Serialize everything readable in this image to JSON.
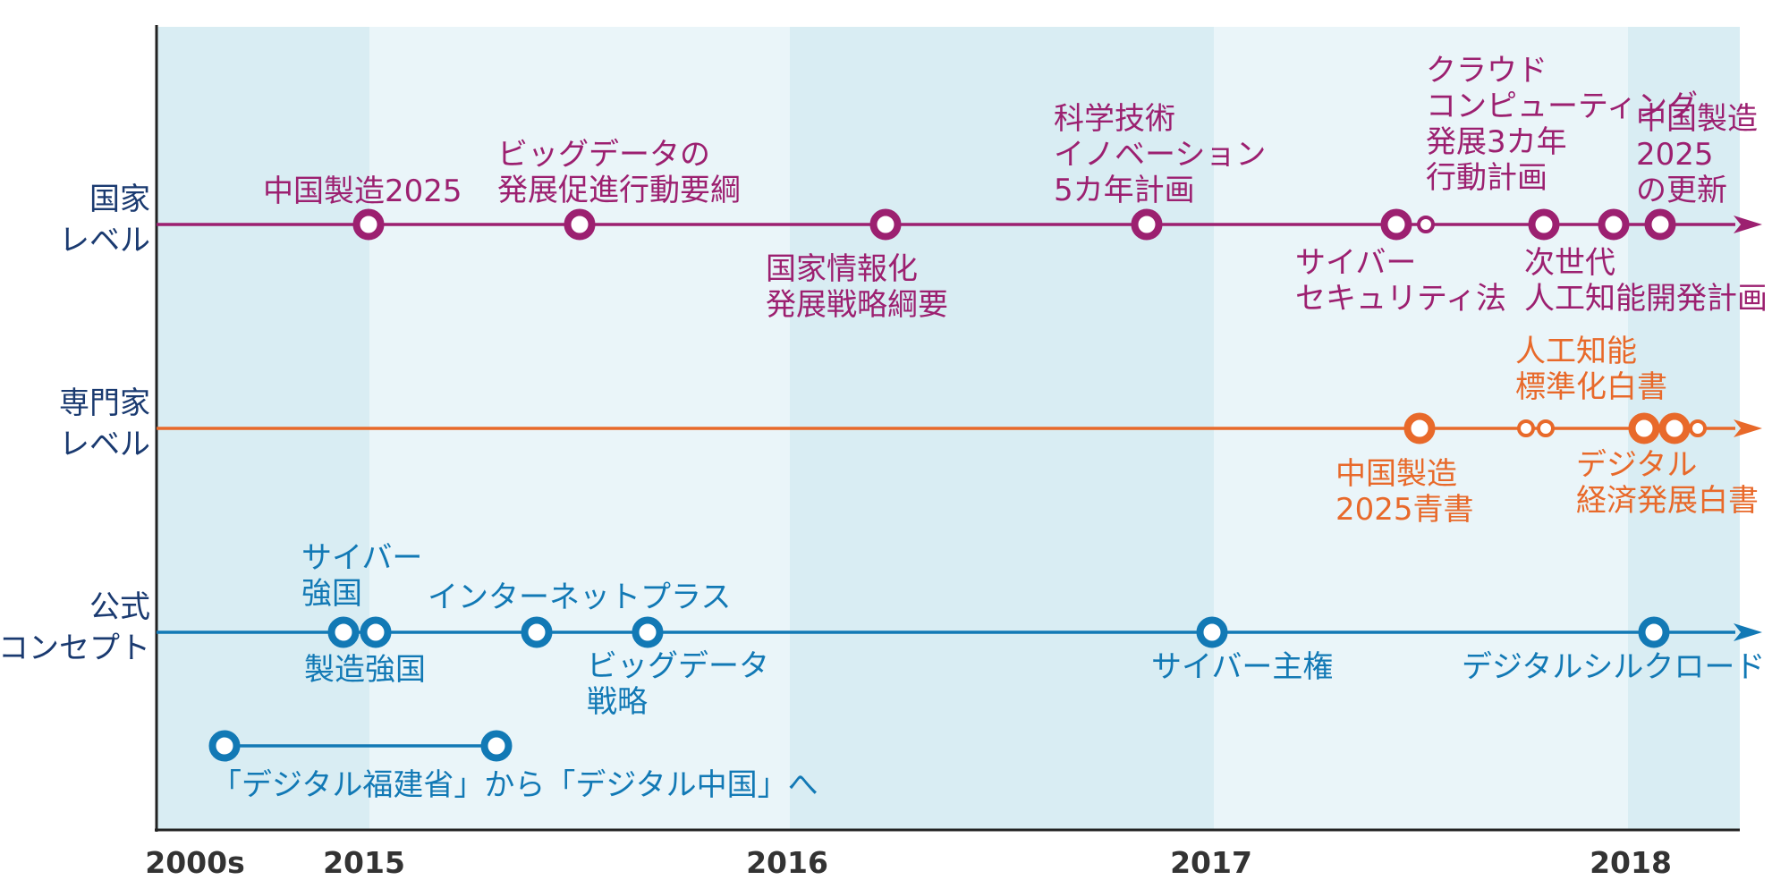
{
  "colors": {
    "national": "#9c2070",
    "expert": "#e8692a",
    "official": "#1279b5",
    "band_dark": "#d9edf3",
    "band_light": "#eaf5f9",
    "axis": "#222222",
    "year_text": "#333333"
  },
  "row_labels": {
    "national": [
      "国家",
      "レベル"
    ],
    "expert": [
      "専門家",
      "レベル"
    ],
    "official": [
      "公式",
      "コンセプト"
    ]
  },
  "years": [
    "2000s",
    "2015",
    "2016",
    "2017",
    "2018"
  ],
  "national_events": [
    {
      "lines": [
        "中国製造2025"
      ]
    },
    {
      "lines": [
        "ビッグデータの",
        "発展促進行動要綱"
      ]
    },
    {
      "lines": [
        "国家情報化",
        "発展戦略綱要"
      ]
    },
    {
      "lines": [
        "科学技術",
        "イノベーション",
        "5カ年計画"
      ]
    },
    {
      "lines": [
        "サイバー",
        "セキュリティ法"
      ]
    },
    {
      "lines": [
        "クラウド",
        "コンピューティング",
        "発展3カ年",
        "行動計画"
      ]
    },
    {
      "lines": [
        "次世代",
        "人工知能開発計画"
      ]
    },
    {
      "lines": [
        "中国製造",
        "2025",
        "の更新"
      ]
    }
  ],
  "expert_events": [
    {
      "lines": [
        "中国製造",
        "2025青書"
      ]
    },
    {
      "lines": [
        "人工知能",
        "標準化白書"
      ]
    },
    {
      "lines": [
        "デジタル",
        "経済発展白書"
      ]
    }
  ],
  "official_events": [
    {
      "lines": [
        "サイバー",
        "強国"
      ]
    },
    {
      "lines": [
        "製造強国"
      ]
    },
    {
      "lines": [
        "インターネットプラス"
      ]
    },
    {
      "lines": [
        "ビッグデータ",
        "戦略"
      ]
    },
    {
      "lines": [
        "サイバー主権"
      ]
    },
    {
      "lines": [
        "デジタルシルクロード"
      ]
    }
  ],
  "range_event": {
    "label": "「デジタル福建省」から「デジタル中国」へ"
  }
}
